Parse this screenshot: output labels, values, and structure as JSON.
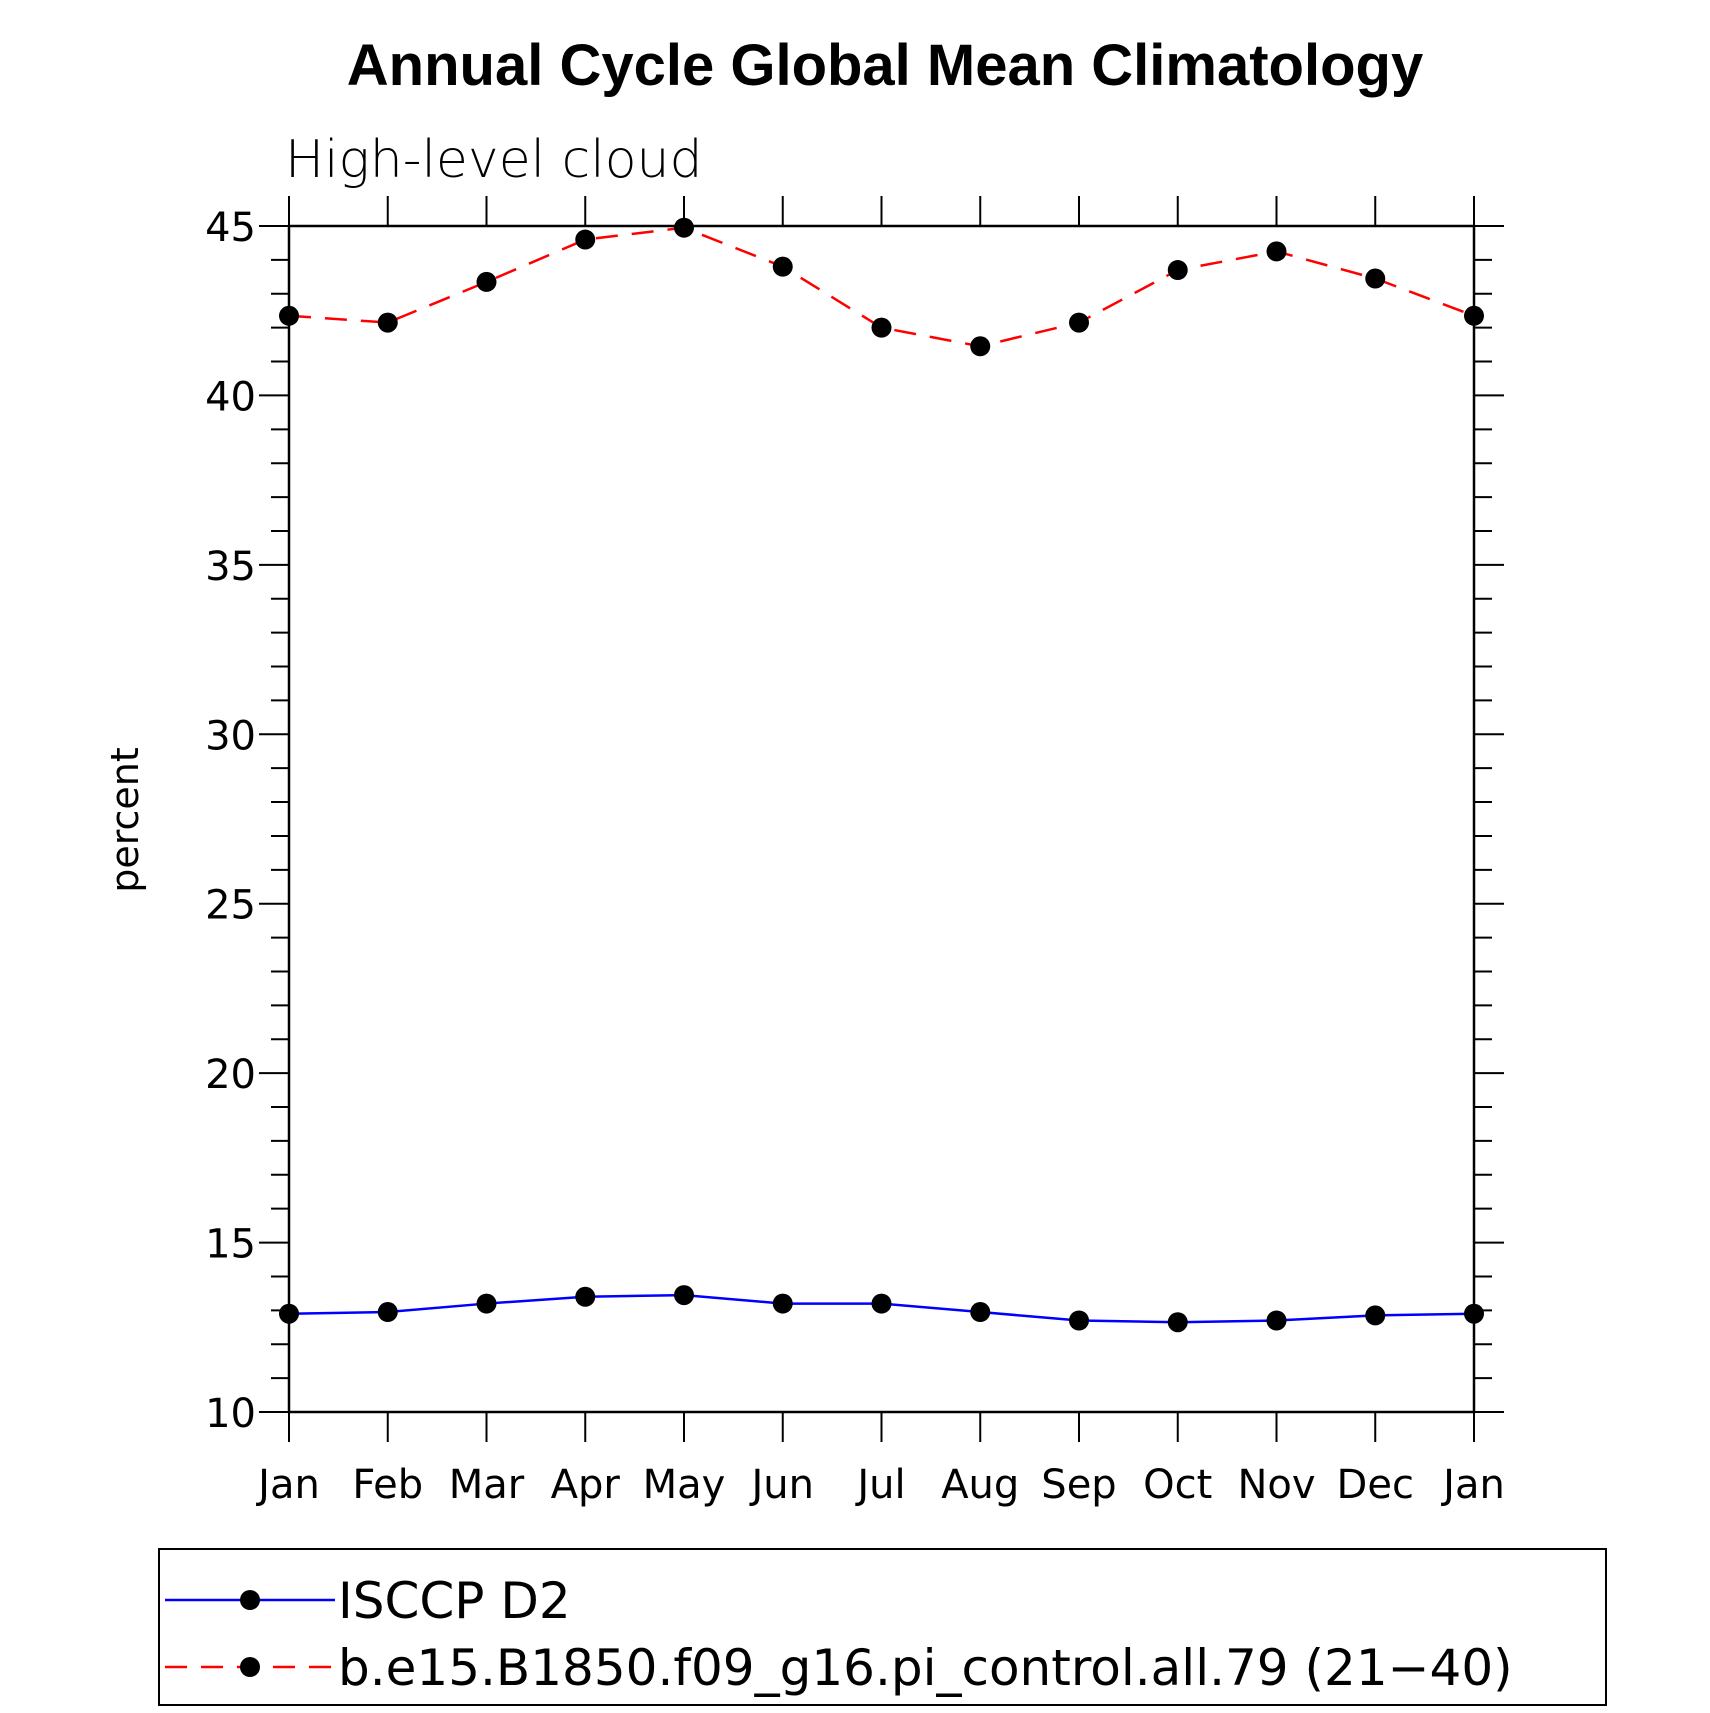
{
  "chart_data": {
    "type": "line",
    "title": "Annual Cycle Global Mean Climatology",
    "subtitle": "High-level cloud",
    "ylabel": "percent",
    "xlabel": "",
    "categories": [
      "Jan",
      "Feb",
      "Mar",
      "Apr",
      "May",
      "Jun",
      "Jul",
      "Aug",
      "Sep",
      "Oct",
      "Nov",
      "Dec",
      "Jan"
    ],
    "ylim": [
      10,
      45
    ],
    "yticks": [
      10,
      15,
      20,
      25,
      30,
      35,
      40,
      45
    ],
    "grid": false,
    "legend_position": "bottom",
    "series": [
      {
        "name": "ISCCP D2",
        "color": "#0000ff",
        "dash": "solid",
        "marker": "filled-circle",
        "values": [
          12.9,
          12.95,
          13.2,
          13.4,
          13.45,
          13.2,
          13.2,
          12.95,
          12.7,
          12.65,
          12.7,
          12.85,
          12.9
        ]
      },
      {
        "name": "b.e15.B1850.f09_g16.pi_control.all.79 (21−40)",
        "color": "#ff0000",
        "dash": "dashed",
        "marker": "filled-circle",
        "values": [
          42.35,
          42.15,
          43.35,
          44.6,
          44.95,
          43.8,
          42.0,
          41.45,
          42.15,
          43.7,
          44.25,
          43.45,
          42.35
        ]
      }
    ]
  },
  "colors": {
    "axis": "#000000",
    "marker": "#000000"
  }
}
